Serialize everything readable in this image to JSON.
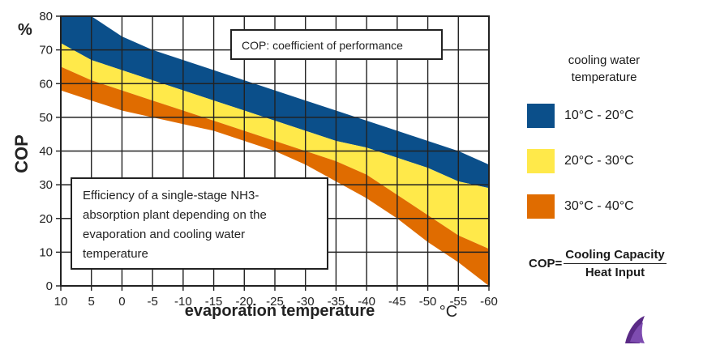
{
  "chart_data": {
    "type": "area",
    "y_unit_label": "%",
    "ylabel": "COP",
    "xlabel": "evaporation temperature",
    "x_unit_label": "°C",
    "x_ticks": [
      "10",
      "5",
      "0",
      "-5",
      "-10",
      "-15",
      "-20",
      "-25",
      "-30",
      "-35",
      "-40",
      "-45",
      "-50",
      "-55",
      "-60"
    ],
    "y_ticks": [
      "0",
      "10",
      "20",
      "30",
      "40",
      "50",
      "60",
      "70",
      "80"
    ],
    "xlim": [
      10,
      -60
    ],
    "ylim": [
      0,
      80
    ],
    "grid": true,
    "x": [
      10,
      5,
      0,
      -5,
      -10,
      -15,
      -20,
      -25,
      -30,
      -35,
      -40,
      -45,
      -50,
      -55,
      -60
    ],
    "series": [
      {
        "name": "10°C - 20°C",
        "color": "#0b4f8a",
        "upper": [
          80,
          80,
          74,
          70,
          67,
          64,
          61,
          58,
          55,
          52,
          49,
          46,
          43,
          40,
          36
        ],
        "lower": [
          72,
          67,
          64,
          61,
          58,
          55,
          52,
          49,
          46,
          43,
          41,
          38,
          35,
          31,
          29
        ]
      },
      {
        "name": "20°C - 30°C",
        "color": "#ffe94a",
        "upper": [
          72,
          67,
          64,
          61,
          58,
          55,
          52,
          49,
          46,
          43,
          41,
          38,
          35,
          31,
          29
        ],
        "lower": [
          65,
          61,
          58,
          55,
          52,
          49,
          46,
          43,
          40,
          37,
          33,
          27,
          21,
          15,
          11
        ]
      },
      {
        "name": "30°C - 40°C",
        "color": "#e06c00",
        "upper": [
          65,
          61,
          58,
          55,
          52,
          49,
          46,
          43,
          40,
          37,
          33,
          27,
          21,
          15,
          11
        ],
        "lower": [
          58,
          55,
          52,
          50,
          48,
          46,
          43,
          40,
          36,
          31,
          26,
          20,
          13,
          7,
          0
        ]
      }
    ],
    "annotations": [
      "COP: coefficient of performance",
      "Efficiency of a single-stage NH3-absorption plant depending on the evaporation and cooling water temperature"
    ]
  },
  "legend": {
    "title_line1": "cooling water",
    "title_line2": "temperature",
    "items": [
      {
        "label": "10°C - 20°C",
        "color": "#0b4f8a"
      },
      {
        "label": "20°C - 30°C",
        "color": "#ffe94a"
      },
      {
        "label": "30°C - 40°C",
        "color": "#e06c00"
      }
    ]
  },
  "formula": {
    "lhs": "COP=",
    "numerator": "Cooling Capacity",
    "denominator": "Heat Input"
  },
  "annotation_lines": {
    "cop_def": "COP: coefficient of performance",
    "efficiency": [
      "Efficiency of a single-stage NH3-",
      "absorption plant depending on the",
      "evaporation and cooling water",
      "temperature"
    ]
  }
}
